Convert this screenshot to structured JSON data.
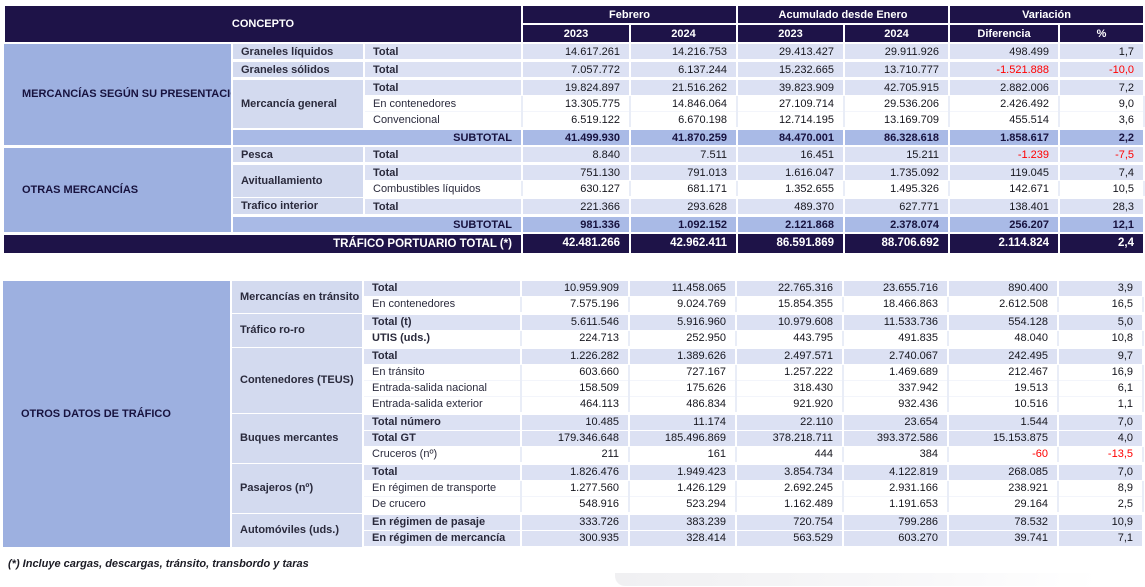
{
  "header": {
    "concepto": "CONCEPTO",
    "groups": [
      {
        "label": "Febrero",
        "cols": [
          "2023",
          "2024"
        ]
      },
      {
        "label": "Acumulado desde Enero",
        "cols": [
          "2023",
          "2024"
        ]
      },
      {
        "label": "Variación",
        "cols": [
          "Diferencia",
          "%"
        ]
      }
    ]
  },
  "colors": {
    "header_navy": "#1E1348",
    "section_blue": "#9DB0E0",
    "subtotal_blue": "#A9BAE6",
    "category_blue": "#D3DAEF",
    "row_tint": "#DCE1F3",
    "negative_red": "#FF0000"
  },
  "sections": [
    {
      "name": "MERCANCÍAS SEGÚN SU PRESENTACIÓN",
      "groups": [
        {
          "category": "Graneles líquidos",
          "rows": [
            {
              "label": "Total",
              "b": 1,
              "t": 1,
              "values": [
                "14.617.261",
                "14.216.753",
                "29.413.427",
                "29.911.926",
                "498.499",
                "1,7"
              ]
            }
          ]
        },
        {
          "category": "Graneles sólidos",
          "rows": [
            {
              "label": "Total",
              "b": 1,
              "t": 1,
              "values": [
                "7.057.772",
                "6.137.244",
                "15.232.665",
                "13.710.777",
                "-1.521.888",
                "-10,0"
              ]
            }
          ]
        },
        {
          "category": "Mercancía general",
          "rows": [
            {
              "label": "Total",
              "b": 1,
              "t": 1,
              "values": [
                "19.824.897",
                "21.516.262",
                "39.823.909",
                "42.705.915",
                "2.882.006",
                "7,2"
              ]
            },
            {
              "label": "En contenedores",
              "b": 0,
              "t": 0,
              "values": [
                "13.305.775",
                "14.846.064",
                "27.109.714",
                "29.536.206",
                "2.426.492",
                "9,0"
              ]
            },
            {
              "label": "Convencional",
              "b": 0,
              "t": 0,
              "values": [
                "6.519.122",
                "6.670.198",
                "12.714.195",
                "13.169.709",
                "455.514",
                "3,6"
              ]
            }
          ]
        }
      ],
      "subtotal": {
        "label": "SUBTOTAL",
        "values": [
          "41.499.930",
          "41.870.259",
          "84.470.001",
          "86.328.618",
          "1.858.617",
          "2,2"
        ]
      }
    },
    {
      "name": "OTRAS MERCANCÍAS",
      "groups": [
        {
          "category": "Pesca",
          "rows": [
            {
              "label": "Total",
              "b": 1,
              "t": 1,
              "values": [
                "8.840",
                "7.511",
                "16.451",
                "15.211",
                "-1.239",
                "-7,5"
              ]
            }
          ]
        },
        {
          "category": "Avituallamiento",
          "rows": [
            {
              "label": "Total",
              "b": 1,
              "t": 1,
              "values": [
                "751.130",
                "791.013",
                "1.616.047",
                "1.735.092",
                "119.045",
                "7,4"
              ]
            },
            {
              "label": "Combustibles líquidos",
              "b": 0,
              "t": 0,
              "values": [
                "630.127",
                "681.171",
                "1.352.655",
                "1.495.326",
                "142.671",
                "10,5"
              ]
            }
          ]
        },
        {
          "category": "Trafico interior",
          "rows": [
            {
              "label": "Total",
              "b": 1,
              "t": 1,
              "values": [
                "221.366",
                "293.628",
                "489.370",
                "627.771",
                "138.401",
                "28,3"
              ]
            }
          ]
        }
      ],
      "subtotal": {
        "label": "SUBTOTAL",
        "values": [
          "981.336",
          "1.092.152",
          "2.121.868",
          "2.378.074",
          "256.207",
          "12,1"
        ]
      }
    }
  ],
  "grand_total": {
    "label": "TRÁFICO PORTUARIO TOTAL (*)",
    "values": [
      "42.481.266",
      "42.962.411",
      "86.591.869",
      "88.706.692",
      "2.114.824",
      "2,4"
    ]
  },
  "other_section": {
    "name": "OTROS DATOS DE TRÁFICO",
    "groups": [
      {
        "category": "Mercancías en tránsito",
        "rows": [
          {
            "label": "Total",
            "b": 1,
            "t": 1,
            "values": [
              "10.959.909",
              "11.458.065",
              "22.765.316",
              "23.655.716",
              "890.400",
              "3,9"
            ]
          },
          {
            "label": "En contenedores",
            "b": 0,
            "t": 0,
            "values": [
              "7.575.196",
              "9.024.769",
              "15.854.355",
              "18.466.863",
              "2.612.508",
              "16,5"
            ]
          }
        ]
      },
      {
        "category": "Tráfico ro-ro",
        "rows": [
          {
            "label": "Total (t)",
            "b": 1,
            "t": 1,
            "values": [
              "5.611.546",
              "5.916.960",
              "10.979.608",
              "11.533.736",
              "554.128",
              "5,0"
            ]
          },
          {
            "label": "UTIS (uds.)",
            "b": 1,
            "t": 0,
            "values": [
              "224.713",
              "252.950",
              "443.795",
              "491.835",
              "48.040",
              "10,8"
            ]
          }
        ]
      },
      {
        "category": "Contenedores (TEUS)",
        "rows": [
          {
            "label": "Total",
            "b": 1,
            "t": 1,
            "values": [
              "1.226.282",
              "1.389.626",
              "2.497.571",
              "2.740.067",
              "242.495",
              "9,7"
            ]
          },
          {
            "label": "En tránsito",
            "b": 0,
            "t": 0,
            "values": [
              "603.660",
              "727.167",
              "1.257.222",
              "1.469.689",
              "212.467",
              "16,9"
            ]
          },
          {
            "label": "Entrada-salida nacional",
            "b": 0,
            "t": 0,
            "values": [
              "158.509",
              "175.626",
              "318.430",
              "337.942",
              "19.513",
              "6,1"
            ]
          },
          {
            "label": "Entrada-salida exterior",
            "b": 0,
            "t": 0,
            "values": [
              "464.113",
              "486.834",
              "921.920",
              "932.436",
              "10.516",
              "1,1"
            ]
          }
        ]
      },
      {
        "category": "Buques mercantes",
        "rows": [
          {
            "label": "Total número",
            "b": 1,
            "t": 1,
            "values": [
              "10.485",
              "11.174",
              "22.110",
              "23.654",
              "1.544",
              "7,0"
            ]
          },
          {
            "label": "Total GT",
            "b": 1,
            "t": 1,
            "values": [
              "179.346.648",
              "185.496.869",
              "378.218.711",
              "393.372.586",
              "15.153.875",
              "4,0"
            ]
          },
          {
            "label": "Cruceros (nº)",
            "b": 0,
            "t": 0,
            "values": [
              "211",
              "161",
              "444",
              "384",
              "-60",
              "-13,5"
            ]
          }
        ]
      },
      {
        "category": "Pasajeros (nº)",
        "rows": [
          {
            "label": "Total",
            "b": 1,
            "t": 1,
            "values": [
              "1.826.476",
              "1.949.423",
              "3.854.734",
              "4.122.819",
              "268.085",
              "7,0"
            ]
          },
          {
            "label": "En régimen de transporte",
            "b": 0,
            "t": 0,
            "values": [
              "1.277.560",
              "1.426.129",
              "2.692.245",
              "2.931.166",
              "238.921",
              "8,9"
            ]
          },
          {
            "label": "De crucero",
            "b": 0,
            "t": 0,
            "values": [
              "548.916",
              "523.294",
              "1.162.489",
              "1.191.653",
              "29.164",
              "2,5"
            ]
          }
        ]
      },
      {
        "category": "Automóviles (uds.)",
        "rows": [
          {
            "label": "En régimen de pasaje",
            "b": 1,
            "t": 1,
            "values": [
              "333.726",
              "383.239",
              "720.754",
              "799.286",
              "78.532",
              "10,9"
            ]
          },
          {
            "label": "En régimen de mercancía",
            "b": 1,
            "t": 1,
            "values": [
              "300.935",
              "328.414",
              "563.529",
              "603.270",
              "39.741",
              "7,1"
            ]
          }
        ]
      }
    ]
  },
  "footnote": "(*) Incluye cargas, descargas, tránsito, transbordo y taras"
}
